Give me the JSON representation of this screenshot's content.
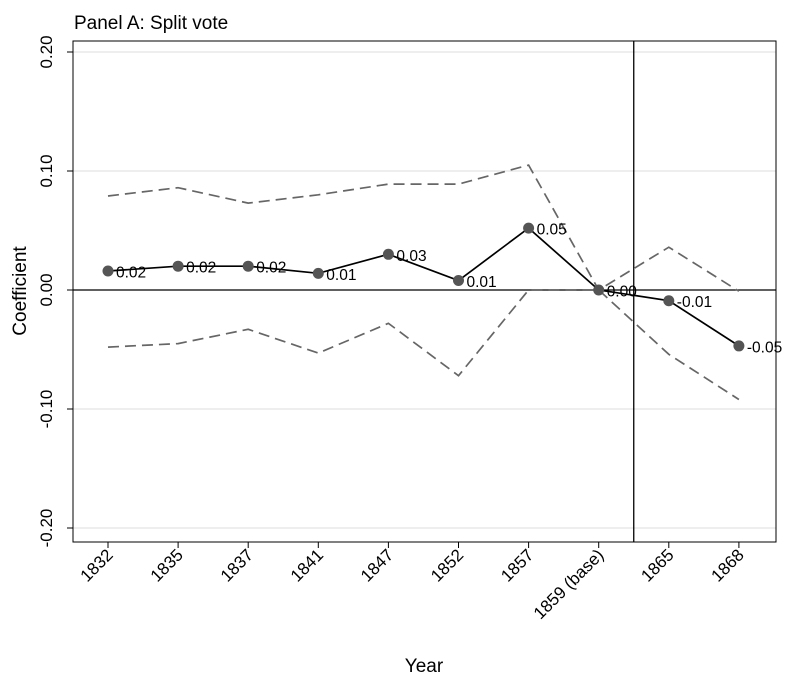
{
  "chart_data": {
    "type": "line",
    "title": "Panel A: Split vote",
    "xlabel": "Year",
    "ylabel": "Coefficient",
    "categories": [
      "1832",
      "1835",
      "1837",
      "1841",
      "1847",
      "1852",
      "1857",
      "1859 (base)",
      "1865",
      "1868"
    ],
    "ylim": [
      -0.21,
      0.21
    ],
    "yticks": [
      0.2,
      0.1,
      0.0,
      -0.1,
      -0.2
    ],
    "ytick_labels": [
      "0.20",
      "0.10",
      "0.00",
      "-0.10",
      "-0.20"
    ],
    "grid": true,
    "reference_line_y": 0,
    "vertical_line_between": [
      "1859 (base)",
      "1865"
    ],
    "series": [
      {
        "role": "estimate",
        "style": "solid-with-markers",
        "color": "#000000",
        "marker_color": "#555555",
        "values": [
          0.016,
          0.02,
          0.02,
          0.014,
          0.03,
          0.008,
          0.052,
          0.0,
          -0.009,
          -0.047
        ],
        "labels": [
          "0.02",
          "0.02",
          "0.02",
          "0.01",
          "0.03",
          "0.01",
          "0.05",
          "0.00",
          "-0.01",
          "-0.05"
        ]
      },
      {
        "role": "upper-ci",
        "style": "dashed",
        "color": "#666666",
        "values": [
          0.079,
          0.086,
          0.073,
          0.08,
          0.089,
          0.089,
          0.105,
          0.0,
          0.036,
          -0.001
        ]
      },
      {
        "role": "lower-ci",
        "style": "dashed",
        "color": "#666666",
        "values": [
          -0.048,
          -0.045,
          -0.033,
          -0.053,
          -0.028,
          -0.072,
          0.0,
          0.0,
          -0.054,
          -0.092
        ]
      }
    ]
  }
}
